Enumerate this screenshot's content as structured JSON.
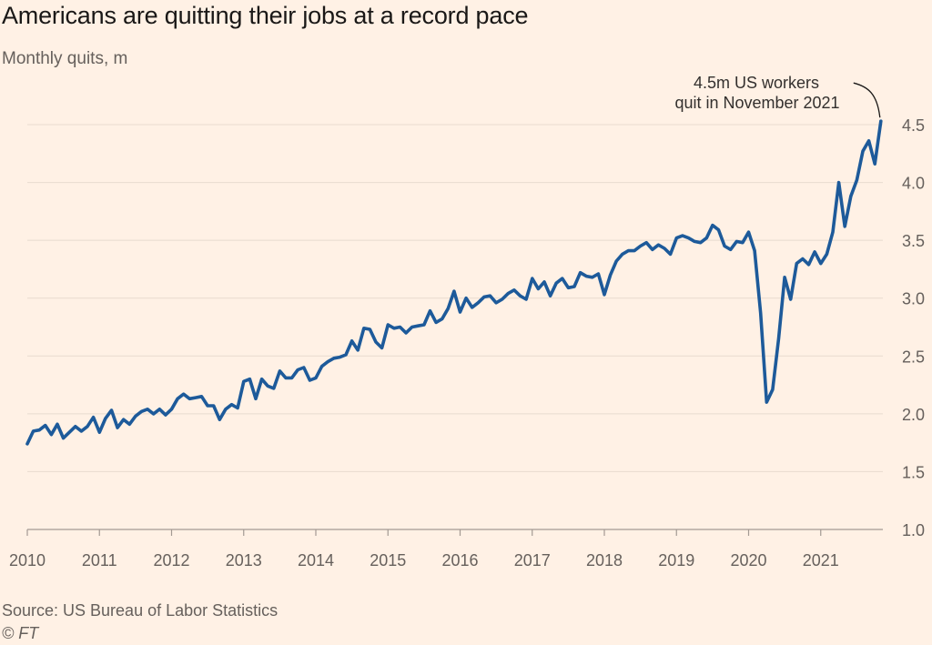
{
  "title": "Americans are quitting their jobs at a record pace",
  "subtitle": "Monthly quits, m",
  "source": "Source: US Bureau of Labor Statistics",
  "copyright": "© FT",
  "chart_data": {
    "type": "line",
    "ylim": [
      1.0,
      4.5
    ],
    "yticks": [
      "1.0",
      "1.5",
      "2.0",
      "2.5",
      "3.0",
      "3.5",
      "4.0",
      "4.5"
    ],
    "xticks": [
      "2010",
      "2011",
      "2012",
      "2013",
      "2014",
      "2015",
      "2016",
      "2017",
      "2018",
      "2019",
      "2020",
      "2021"
    ],
    "grid": true,
    "line_color": "#1d5a9a",
    "annotation": {
      "line1": "4.5m US workers",
      "line2": "quit in November 2021"
    },
    "series": [
      {
        "values": [
          1.74,
          1.85,
          1.86,
          1.9,
          1.82,
          1.91,
          1.79,
          1.84,
          1.89,
          1.85,
          1.89,
          1.97,
          1.84,
          1.96,
          2.03,
          1.88,
          1.95,
          1.91,
          1.98,
          2.02,
          2.04,
          2.0,
          2.04,
          1.99,
          2.04,
          2.13,
          2.17,
          2.13,
          2.14,
          2.15,
          2.07,
          2.07,
          1.95,
          2.04,
          2.08,
          2.05,
          2.28,
          2.3,
          2.13,
          2.3,
          2.24,
          2.22,
          2.37,
          2.31,
          2.31,
          2.38,
          2.4,
          2.29,
          2.31,
          2.41,
          2.45,
          2.48,
          2.49,
          2.51,
          2.63,
          2.55,
          2.74,
          2.73,
          2.62,
          2.57,
          2.77,
          2.74,
          2.75,
          2.7,
          2.75,
          2.76,
          2.77,
          2.89,
          2.79,
          2.82,
          2.91,
          3.06,
          2.88,
          3.0,
          2.92,
          2.96,
          3.01,
          3.02,
          2.96,
          2.99,
          3.04,
          3.07,
          3.02,
          2.99,
          3.17,
          3.08,
          3.14,
          3.02,
          3.13,
          3.17,
          3.09,
          3.1,
          3.22,
          3.19,
          3.18,
          3.21,
          3.03,
          3.2,
          3.32,
          3.38,
          3.41,
          3.41,
          3.45,
          3.48,
          3.42,
          3.46,
          3.43,
          3.38,
          3.52,
          3.54,
          3.52,
          3.49,
          3.48,
          3.52,
          3.63,
          3.59,
          3.45,
          3.42,
          3.49,
          3.48,
          3.57,
          3.41,
          2.87,
          2.1,
          2.21,
          2.65,
          3.18,
          2.99,
          3.3,
          3.34,
          3.29,
          3.4,
          3.3,
          3.38,
          3.57,
          4.0,
          3.62,
          3.88,
          4.02,
          4.27,
          4.36,
          4.16,
          4.53
        ]
      }
    ]
  }
}
